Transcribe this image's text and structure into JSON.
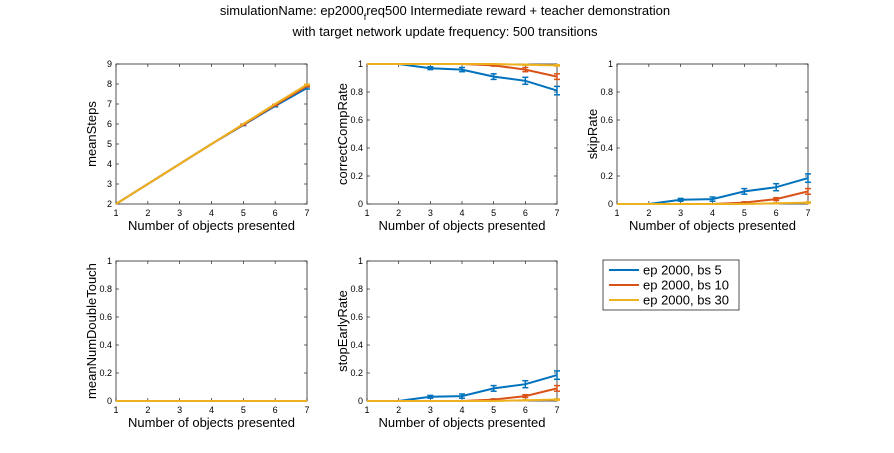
{
  "figure": {
    "title_line1_part1": "simulationName: ep2000",
    "title_line1_subscript": "f",
    "title_line1_part2": "req500  Intermediate reward + teacher demonstration",
    "title_line2": "with target network update frequency: 500 transitions"
  },
  "colors": {
    "ep 2000, bs 5": "#0072bd",
    "ep 2000, bs 10": "#d95319",
    "ep 2000, bs 30": "#edb120"
  },
  "legend": {
    "entries": [
      "ep 2000, bs 5",
      "ep 2000, bs 10",
      "ep 2000, bs 30"
    ]
  },
  "chart_data": [
    {
      "type": "line",
      "id": "meanSteps",
      "xlabel": "Number of objects presented",
      "ylabel": "meanSteps",
      "x": [
        1,
        2,
        3,
        4,
        5,
        6,
        7
      ],
      "xlim": [
        1,
        7
      ],
      "ylim": [
        2,
        9
      ],
      "xticks": [
        1,
        2,
        3,
        4,
        5,
        6,
        7
      ],
      "yticks": [
        2,
        3,
        4,
        5,
        6,
        7,
        8,
        9
      ],
      "series": [
        {
          "name": "ep 2000, bs 5",
          "values": [
            2,
            3,
            4,
            5,
            5.95,
            6.9,
            7.8
          ],
          "err": [
            0,
            0,
            0,
            0,
            0.03,
            0.04,
            0.05
          ]
        },
        {
          "name": "ep 2000, bs 10",
          "values": [
            2,
            3,
            4,
            5,
            5.97,
            6.95,
            7.9
          ],
          "err": [
            0,
            0,
            0,
            0,
            0.02,
            0.03,
            0.04
          ]
        },
        {
          "name": "ep 2000, bs 30",
          "values": [
            2,
            3,
            4,
            5,
            6,
            7,
            7.97
          ],
          "err": [
            0,
            0,
            0,
            0,
            0,
            0,
            0.02
          ]
        }
      ]
    },
    {
      "type": "line",
      "id": "correctCompRate",
      "xlabel": "Number of objects presented",
      "ylabel": "correctCompRate",
      "x": [
        1,
        2,
        3,
        4,
        5,
        6,
        7
      ],
      "xlim": [
        1,
        7
      ],
      "ylim": [
        0,
        1
      ],
      "xticks": [
        1,
        2,
        3,
        4,
        5,
        6,
        7
      ],
      "yticks": [
        0,
        0.2,
        0.4,
        0.6,
        0.8,
        1
      ],
      "series": [
        {
          "name": "ep 2000, bs 5",
          "values": [
            1,
            1,
            0.97,
            0.96,
            0.91,
            0.88,
            0.81
          ],
          "err": [
            0,
            0,
            0.01,
            0.015,
            0.02,
            0.025,
            0.03
          ]
        },
        {
          "name": "ep 2000, bs 10",
          "values": [
            1,
            1,
            1,
            1,
            0.99,
            0.96,
            0.91
          ],
          "err": [
            0,
            0,
            0,
            0,
            0.005,
            0.015,
            0.02
          ]
        },
        {
          "name": "ep 2000, bs 30",
          "values": [
            1,
            1,
            1,
            1,
            1,
            0.995,
            0.99
          ],
          "err": [
            0,
            0,
            0,
            0,
            0,
            0.003,
            0.005
          ]
        }
      ]
    },
    {
      "type": "line",
      "id": "skipRate",
      "xlabel": "Number of objects presented",
      "ylabel": "skipRate",
      "x": [
        1,
        2,
        3,
        4,
        5,
        6,
        7
      ],
      "xlim": [
        1,
        7
      ],
      "ylim": [
        0,
        1
      ],
      "xticks": [
        1,
        2,
        3,
        4,
        5,
        6,
        7
      ],
      "yticks": [
        0,
        0.2,
        0.4,
        0.6,
        0.8,
        1
      ],
      "series": [
        {
          "name": "ep 2000, bs 5",
          "values": [
            0,
            0,
            0.03,
            0.035,
            0.09,
            0.12,
            0.185
          ],
          "err": [
            0,
            0,
            0.01,
            0.015,
            0.02,
            0.025,
            0.03
          ]
        },
        {
          "name": "ep 2000, bs 10",
          "values": [
            0,
            0,
            0,
            0,
            0.01,
            0.035,
            0.09
          ],
          "err": [
            0,
            0,
            0,
            0,
            0.005,
            0.01,
            0.02
          ]
        },
        {
          "name": "ep 2000, bs 30",
          "values": [
            0,
            0,
            0,
            0,
            0,
            0.005,
            0.01
          ],
          "err": [
            0,
            0,
            0,
            0,
            0,
            0.003,
            0.005
          ]
        }
      ]
    },
    {
      "type": "line",
      "id": "meanNumDoubleTouch",
      "xlabel": "Number of objects presented",
      "ylabel": "meanNumDoubleTouch",
      "x": [
        1,
        2,
        3,
        4,
        5,
        6,
        7
      ],
      "xlim": [
        1,
        7
      ],
      "ylim": [
        0,
        1
      ],
      "xticks": [
        1,
        2,
        3,
        4,
        5,
        6,
        7
      ],
      "yticks": [
        0,
        0.2,
        0.4,
        0.6,
        0.8,
        1
      ],
      "series": [
        {
          "name": "ep 2000, bs 5",
          "values": [
            0,
            0,
            0,
            0,
            0,
            0,
            0
          ],
          "err": [
            0,
            0,
            0,
            0,
            0,
            0,
            0
          ]
        },
        {
          "name": "ep 2000, bs 10",
          "values": [
            0,
            0,
            0,
            0,
            0,
            0,
            0
          ],
          "err": [
            0,
            0,
            0,
            0,
            0,
            0,
            0
          ]
        },
        {
          "name": "ep 2000, bs 30",
          "values": [
            0,
            0,
            0,
            0,
            0,
            0,
            0
          ],
          "err": [
            0,
            0,
            0,
            0,
            0,
            0,
            0
          ]
        }
      ]
    },
    {
      "type": "line",
      "id": "stopEarlyRate",
      "xlabel": "Number of objects presented",
      "ylabel": "stopEarlyRate",
      "x": [
        1,
        2,
        3,
        4,
        5,
        6,
        7
      ],
      "xlim": [
        1,
        7
      ],
      "ylim": [
        0,
        1
      ],
      "xticks": [
        1,
        2,
        3,
        4,
        5,
        6,
        7
      ],
      "yticks": [
        0,
        0.2,
        0.4,
        0.6,
        0.8,
        1
      ],
      "series": [
        {
          "name": "ep 2000, bs 5",
          "values": [
            0,
            0,
            0.03,
            0.035,
            0.09,
            0.12,
            0.185
          ],
          "err": [
            0,
            0,
            0.01,
            0.015,
            0.02,
            0.025,
            0.03
          ]
        },
        {
          "name": "ep 2000, bs 10",
          "values": [
            0,
            0,
            0,
            0,
            0.01,
            0.035,
            0.09
          ],
          "err": [
            0,
            0,
            0,
            0,
            0.005,
            0.01,
            0.02
          ]
        },
        {
          "name": "ep 2000, bs 30",
          "values": [
            0,
            0,
            0,
            0,
            0,
            0.005,
            0.01
          ],
          "err": [
            0,
            0,
            0,
            0,
            0,
            0.003,
            0.005
          ]
        }
      ]
    }
  ]
}
